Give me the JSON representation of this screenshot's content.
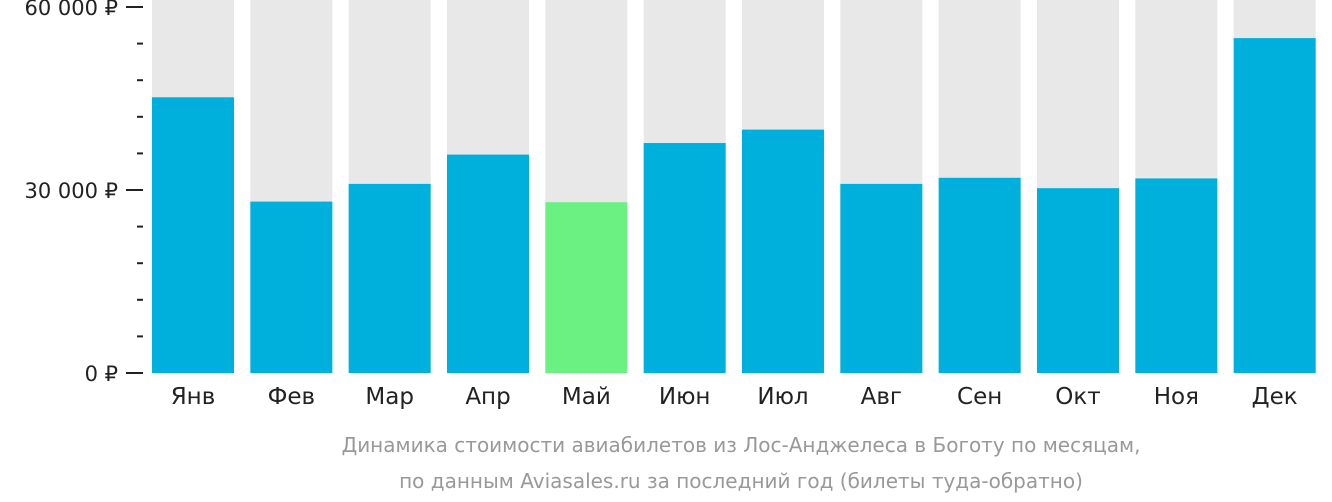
{
  "chart_data": {
    "type": "bar",
    "categories": [
      "Янв",
      "Фев",
      "Мар",
      "Апр",
      "Май",
      "Июн",
      "Июл",
      "Авг",
      "Сен",
      "Окт",
      "Ноя",
      "Дек"
    ],
    "values": [
      45200,
      28100,
      31000,
      35800,
      28000,
      37700,
      39900,
      31000,
      32000,
      30300,
      31900,
      54900
    ],
    "highlight_index": 4,
    "ylim": [
      0,
      60000
    ],
    "yticks": [
      {
        "value": 0,
        "label": "0 ₽"
      },
      {
        "value": 30000,
        "label": "30 000 ₽"
      },
      {
        "value": 60000,
        "label": "60 000 ₽"
      }
    ],
    "minor_tick_step": 6000,
    "colors": {
      "bar": "#00b0dc",
      "highlight": "#6bf182",
      "background_bar": "#e8e8e8",
      "axis": "#222222"
    },
    "caption": [
      "Динамика стоимости авиабилетов из Лос-Анджелеса в Боготу по месяцам,",
      "по данным Aviasales.ru за последний год (билеты туда-обратно)"
    ]
  }
}
